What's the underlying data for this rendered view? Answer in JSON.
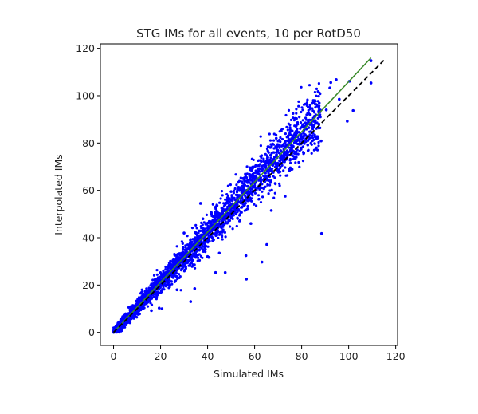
{
  "chart_data": {
    "type": "scatter",
    "title": "STG IMs for all events, 10 per RotD50",
    "xlabel": "Simulated IMs",
    "ylabel": "Interpolated IMs",
    "xlim": [
      -5.6,
      120.8
    ],
    "ylim": [
      -5.5,
      121.9
    ],
    "xticks": [
      0,
      20,
      40,
      60,
      80,
      100,
      120
    ],
    "yticks": [
      0,
      20,
      40,
      60,
      80,
      100,
      120
    ],
    "grid": false,
    "colors": {
      "points": "#0000ff",
      "fit": "#3a8a2a",
      "identity": "#000000"
    },
    "lines": [
      {
        "name": "fit",
        "style": "solid",
        "x": [
          0,
          109.5
        ],
        "y": [
          0,
          116
        ]
      },
      {
        "name": "identity",
        "style": "dashed",
        "x": [
          0,
          115
        ],
        "y": [
          0,
          115
        ]
      }
    ],
    "bulk_points": {
      "count": 2600,
      "slope": 1.05,
      "xmax": 88,
      "spread_rel": 0.065,
      "spread_abs": 0.9,
      "seed": 7
    },
    "outlier_points": [
      [
        109.5,
        114.8
      ],
      [
        109.5,
        105.4
      ],
      [
        99.4,
        89.2
      ],
      [
        101.9,
        93.7
      ],
      [
        88.3,
        80.9
      ],
      [
        88.5,
        41.8
      ],
      [
        63.1,
        29.7
      ],
      [
        65.2,
        37.1
      ],
      [
        56.3,
        32.4
      ],
      [
        56.5,
        22.5
      ],
      [
        67.1,
        51.5
      ],
      [
        58.4,
        46.0
      ],
      [
        47.5,
        25.3
      ],
      [
        43.4,
        25.3
      ],
      [
        32.8,
        13.0
      ],
      [
        34.5,
        18.5
      ],
      [
        92.4,
        105.6
      ],
      [
        94.7,
        106.8
      ],
      [
        100.3,
        106.1
      ],
      [
        92.0,
        103.3
      ],
      [
        69.2,
        82.0
      ],
      [
        19.4,
        10.3
      ],
      [
        20.6,
        10.0
      ],
      [
        16.1,
        9.2
      ],
      [
        82.6,
        79.2
      ],
      [
        96.0,
        98.5
      ],
      [
        90.5,
        94.0
      ],
      [
        85.0,
        90.5
      ],
      [
        83.0,
        86.5
      ],
      [
        75.0,
        84.5
      ],
      [
        72.0,
        79.0
      ],
      [
        78.0,
        86.0
      ],
      [
        60.0,
        70.0
      ],
      [
        55.0,
        65.0
      ],
      [
        50.0,
        59.5
      ],
      [
        37.0,
        54.5
      ],
      [
        38.0,
        48.0
      ],
      [
        30.0,
        42.0
      ],
      [
        40.0,
        32.0
      ],
      [
        45.0,
        33.5
      ],
      [
        27.0,
        18.0
      ],
      [
        24.0,
        20.0
      ]
    ]
  }
}
